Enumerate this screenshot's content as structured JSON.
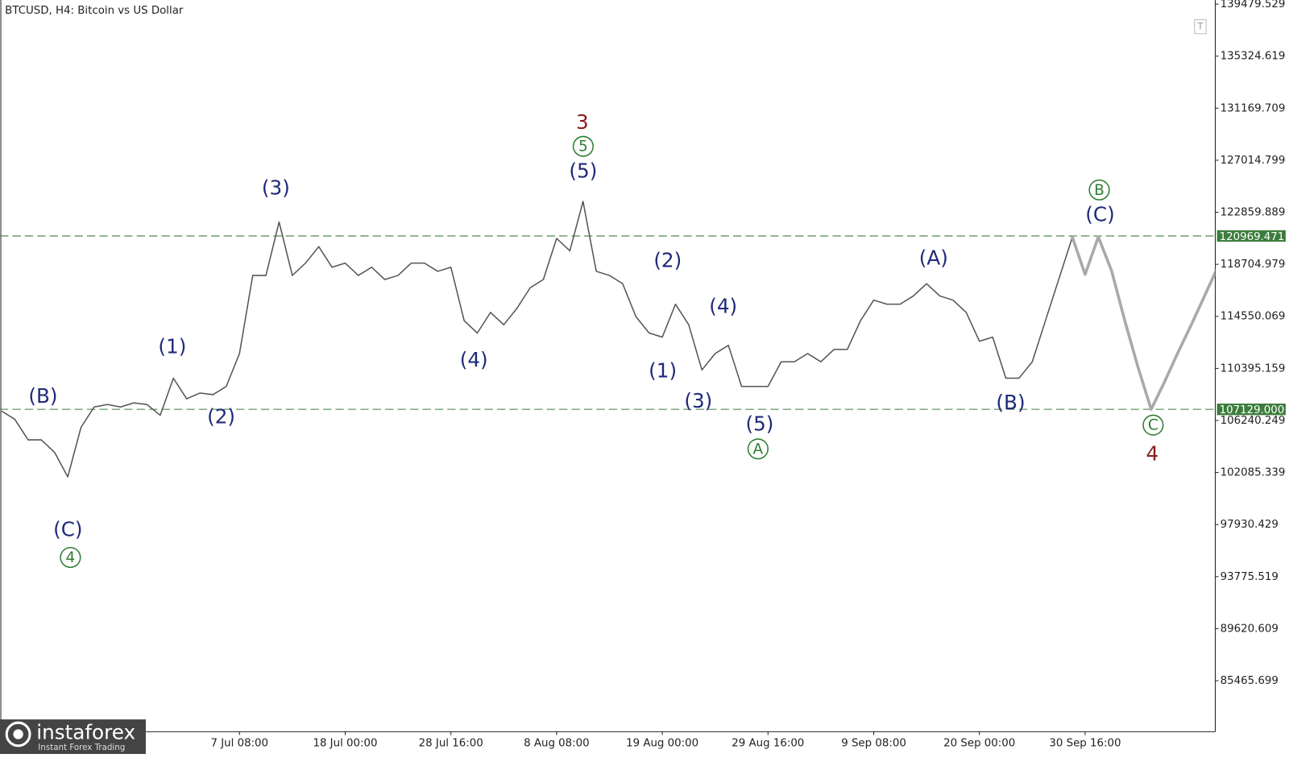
{
  "chart_data": {
    "type": "line",
    "title": "BTCUSD, H4:  Bitcoin vs US Dollar",
    "toolbar_button": "T",
    "watermark": {
      "brand": "instaforex",
      "tagline": "Instant Forex Trading"
    },
    "categories": [
      null,
      null,
      null,
      null,
      null,
      null,
      null,
      null,
      null,
      null,
      null,
      null,
      null,
      null,
      null,
      null,
      null,
      null,
      "7 Jul 08:00",
      null,
      null,
      null,
      null,
      null,
      null,
      null,
      "18 Jul 00:00",
      null,
      null,
      null,
      null,
      null,
      null,
      null,
      "28 Jul 16:00",
      null,
      null,
      null,
      null,
      null,
      null,
      null,
      "8 Aug 08:00",
      null,
      null,
      null,
      null,
      null,
      null,
      null,
      "19 Aug 00:00",
      null,
      null,
      null,
      null,
      null,
      null,
      null,
      "29 Aug 16:00",
      null,
      null,
      null,
      null,
      null,
      null,
      null,
      "9 Sep 08:00",
      null,
      null,
      null,
      null,
      null,
      null,
      null,
      "20 Sep 00:00",
      null,
      null,
      null,
      null,
      null,
      null,
      null,
      "30 Sep 16:00",
      null,
      null,
      null,
      null,
      null,
      null,
      null,
      null,
      null,
      null
    ],
    "series": [
      {
        "color": "#555555",
        "values": [
          106987,
          106330,
          104690,
          104690,
          103705,
          101736,
          105674,
          107316,
          107512,
          107316,
          107644,
          107512,
          106659,
          109612,
          107972,
          108430,
          108300,
          108956,
          111582,
          117818,
          117818,
          122084,
          117818,
          118803,
          120116,
          118474,
          118803,
          117818,
          118474,
          117490,
          117818,
          118803,
          118803,
          118146,
          118474,
          114208,
          113223,
          114864,
          113880,
          115193,
          116833,
          117490,
          120772,
          119787,
          123725,
          118146,
          117818,
          117162,
          114536,
          113223,
          112895,
          115521,
          113880,
          110269,
          111582,
          112238,
          108956,
          108956,
          108956,
          110925,
          110925,
          111582,
          110925,
          111910,
          111910,
          114208,
          115849,
          115521,
          115521,
          116177,
          117162,
          116177,
          115849,
          114864,
          112566,
          112895,
          109612,
          109612,
          110925,
          114208,
          117490,
          120772,
          null,
          null,
          null,
          null,
          null,
          null,
          null,
          null,
          null,
          null,
          null
        ]
      },
      {
        "color": "#a9a9a9",
        "values": [
          null,
          null,
          null,
          null,
          null,
          null,
          null,
          null,
          null,
          null,
          null,
          null,
          null,
          null,
          null,
          null,
          null,
          null,
          null,
          null,
          null,
          null,
          null,
          null,
          null,
          null,
          null,
          null,
          null,
          null,
          null,
          null,
          null,
          null,
          null,
          null,
          null,
          null,
          null,
          null,
          null,
          null,
          null,
          null,
          null,
          null,
          null,
          null,
          null,
          null,
          null,
          null,
          null,
          null,
          null,
          null,
          null,
          null,
          null,
          null,
          null,
          null,
          null,
          null,
          null,
          null,
          null,
          null,
          null,
          null,
          null,
          null,
          null,
          null,
          null,
          null,
          null,
          null,
          null,
          null,
          null,
          120969,
          117900,
          120900,
          118200,
          114200,
          110500,
          107129,
          109300,
          111600,
          113800,
          116100,
          118400
        ]
      }
    ],
    "ylim": [
      81390,
      139807
    ],
    "yticks": [
      85465.699,
      89620.609,
      93775.519,
      97930.429,
      102085.339,
      106240.249,
      110395.159,
      114550.069,
      118704.979,
      122859.889,
      127014.799,
      131169.709,
      135324.619,
      139479.529
    ],
    "levels": [
      120969.471,
      {
        "value": 107129,
        "label": "107129.000"
      }
    ],
    "level_color": "#3c7d3c",
    "annotations": [
      "(B)",
      "(C)",
      "4",
      "(1)",
      "(2)",
      "(3)",
      "(4)",
      "3",
      "5",
      "(5)",
      "(2)",
      "(1)",
      "(4)",
      "(3)",
      "(5)",
      "A",
      "(A)",
      "(B)",
      "B",
      "(C)",
      "C",
      "4"
    ]
  }
}
